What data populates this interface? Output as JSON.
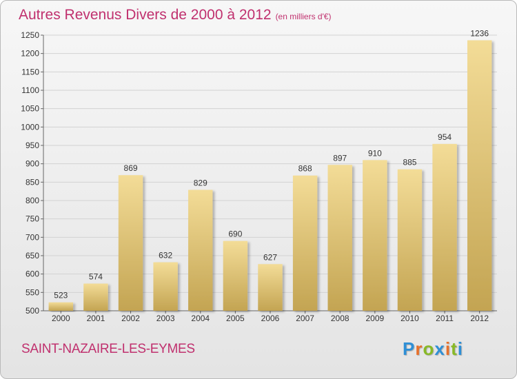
{
  "title": "Autres Revenus Divers de 2000 à 2012",
  "subtitle": "(en milliers d'€)",
  "city": "SAINT-NAZAIRE-LES-EYMES",
  "brand": {
    "letters": [
      "P",
      "r",
      "o",
      "x",
      "i",
      "t",
      "i"
    ],
    "colors": [
      "#2e8fd6",
      "#e8702a",
      "#88b927",
      "#2e8fd6",
      "#e8702a",
      "#88b927",
      "#2e8fd6"
    ]
  },
  "colors": {
    "bar_light": "#f3dc97",
    "bar_dark": "#c3a452",
    "accent": "#c0306e"
  },
  "chart_data": {
    "type": "bar",
    "title": "Autres Revenus Divers de 2000 à 2012",
    "subtitle": "(en milliers d'€)",
    "categories": [
      "2000",
      "2001",
      "2002",
      "2003",
      "2004",
      "2005",
      "2006",
      "2007",
      "2008",
      "2009",
      "2010",
      "2011",
      "2012"
    ],
    "values": [
      523,
      574,
      869,
      632,
      829,
      690,
      627,
      868,
      897,
      910,
      885,
      954,
      1236
    ],
    "ylim": [
      500,
      1250
    ],
    "yticks": [
      500,
      550,
      600,
      650,
      700,
      750,
      800,
      850,
      900,
      950,
      1000,
      1050,
      1100,
      1150,
      1200,
      1250
    ],
    "grid": true,
    "legend": "none"
  }
}
